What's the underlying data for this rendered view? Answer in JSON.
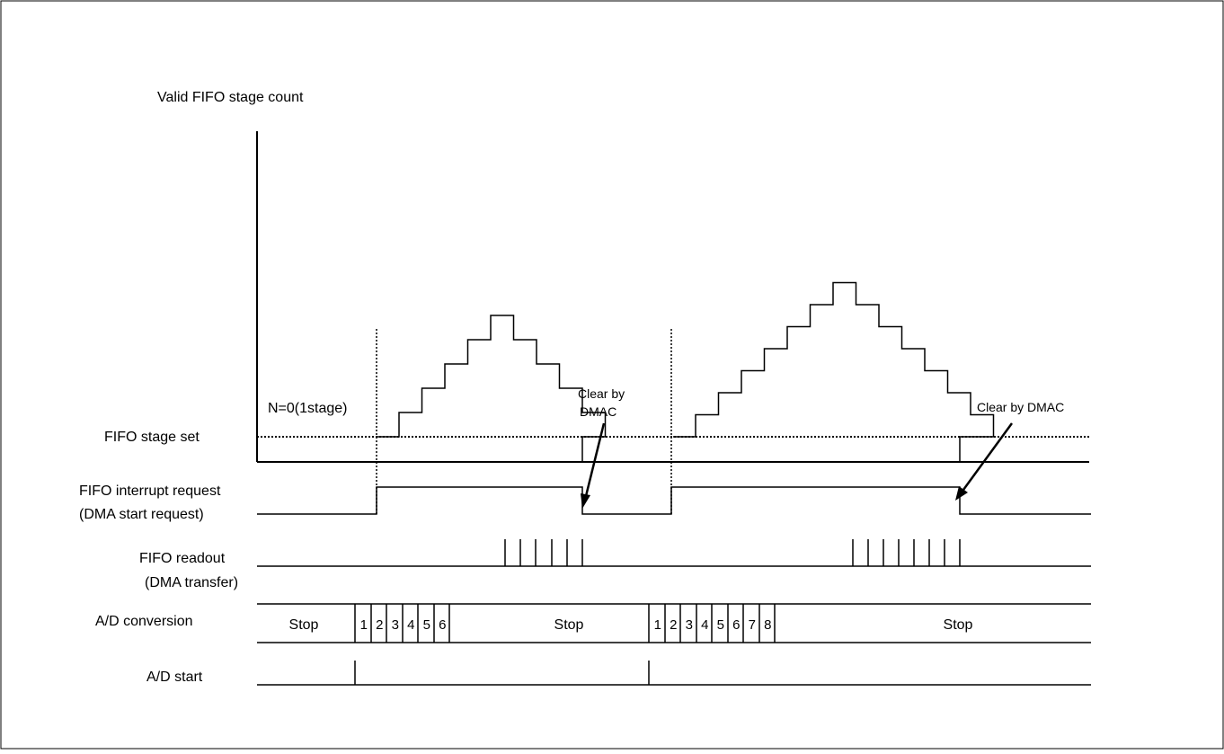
{
  "labels": {
    "y_axis_title": "Valid FIFO stage count",
    "fifo_stage_set": "FIFO stage set",
    "fifo_interrupt_line1": "FIFO interrupt request",
    "fifo_interrupt_line2": "(DMA start request)",
    "fifo_readout_line1": "FIFO readout",
    "fifo_readout_line2": "(DMA transfer)",
    "ad_conversion": "A/D conversion",
    "ad_start": "A/D start"
  },
  "annotations": {
    "n_setting": "N=0(1stage)",
    "clear1_line1": "Clear by",
    "clear1_line2": "DMAC",
    "clear2": "Clear by DMAC"
  },
  "ad_conversion_cells": {
    "stop": "Stop",
    "burst1": [
      "1",
      "2",
      "3",
      "4",
      "5",
      "6"
    ],
    "burst2": [
      "1",
      "2",
      "3",
      "4",
      "5",
      "6",
      "7",
      "8"
    ]
  },
  "staircase": {
    "first_peak_stages": 6,
    "second_peak_stages": 8
  },
  "colors": {
    "line": "#000000",
    "background": "#ffffff"
  }
}
